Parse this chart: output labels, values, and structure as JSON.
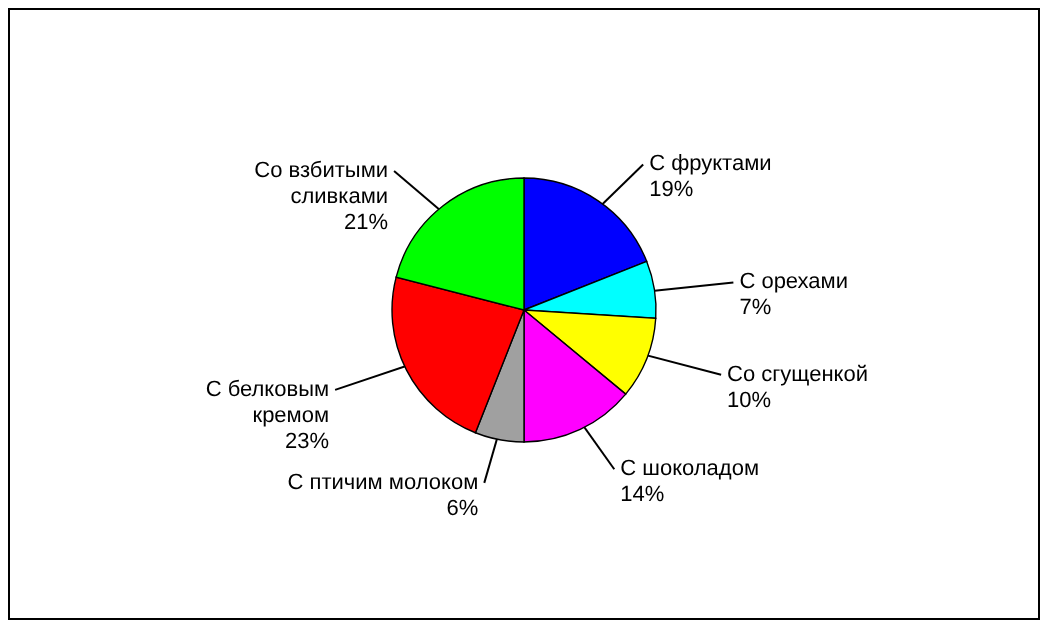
{
  "chart_data": {
    "type": "pie",
    "categories": [
      "С фруктами",
      "С орехами",
      "Со сгущенкой",
      "С шоколадом",
      "С птичим молоком",
      "С белковым кремом",
      "Со взбитыми сливками"
    ],
    "values": [
      19,
      7,
      10,
      14,
      6,
      23,
      21
    ],
    "colors": [
      "#0000ff",
      "#00ffff",
      "#ffff00",
      "#ff00ff",
      "#a0a0a0",
      "#ff0000",
      "#00ff00"
    ],
    "value_labels": [
      "19%",
      "7%",
      "10%",
      "14%",
      "6%",
      "23%",
      "21%"
    ]
  }
}
